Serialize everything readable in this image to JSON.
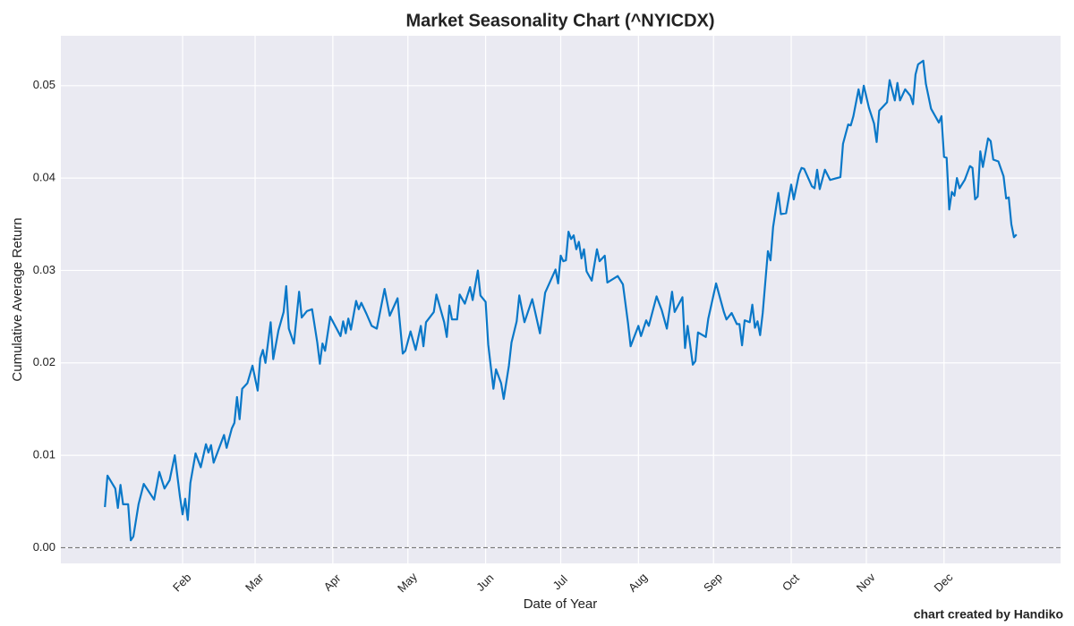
{
  "chart_data": {
    "type": "line",
    "title": "Market Seasonality Chart (^NYICDX)",
    "x_label": "Date of Year",
    "y_label": "Cumulative Average Return",
    "footer": "chart created by Handiko",
    "grid": true,
    "reference_line": 0,
    "xlim": [
      -15,
      371
    ],
    "ylim": [
      -0.0017,
      0.0554
    ],
    "xticks": [
      {
        "value": 32,
        "label": "Feb"
      },
      {
        "value": 60,
        "label": "Mar"
      },
      {
        "value": 90,
        "label": "Apr"
      },
      {
        "value": 119,
        "label": "May"
      },
      {
        "value": 149,
        "label": "Jun"
      },
      {
        "value": 178,
        "label": "Jul"
      },
      {
        "value": 208,
        "label": "Aug"
      },
      {
        "value": 237,
        "label": "Sep"
      },
      {
        "value": 267,
        "label": "Oct"
      },
      {
        "value": 296,
        "label": "Nov"
      },
      {
        "value": 326,
        "label": "Dec"
      }
    ],
    "yticks": [
      {
        "value": 0,
        "label": "0.00"
      },
      0.01,
      0.02,
      0.03,
      0.04,
      0.05
    ],
    "x": [
      2,
      3,
      6,
      7,
      8,
      9,
      11,
      12,
      13,
      15,
      17,
      21,
      23,
      25,
      27,
      29,
      31,
      32,
      33,
      34,
      35,
      37,
      39,
      41,
      42,
      43,
      44,
      48,
      49,
      51,
      52,
      53,
      54,
      55,
      57,
      59,
      61,
      62,
      63,
      64,
      66,
      67,
      69,
      71,
      72,
      73,
      75,
      77,
      78,
      80,
      82,
      84,
      85,
      86,
      87,
      89,
      93,
      94,
      95,
      96,
      97,
      99,
      100,
      101,
      103,
      105,
      107,
      110,
      112,
      115,
      117,
      118,
      120,
      122,
      124,
      125,
      126,
      129,
      130,
      133,
      134,
      135,
      136,
      138,
      139,
      141,
      143,
      144,
      146,
      147,
      149,
      150,
      152,
      153,
      155,
      156,
      158,
      159,
      161,
      162,
      164,
      167,
      170,
      172,
      176,
      177,
      178,
      179,
      180,
      181,
      182,
      183,
      184,
      185,
      186,
      187,
      188,
      190,
      192,
      193,
      195,
      196,
      200,
      202,
      204,
      205,
      208,
      209,
      211,
      212,
      215,
      217,
      219,
      221,
      222,
      225,
      226,
      227,
      229,
      230,
      231,
      234,
      235,
      238,
      241,
      242,
      244,
      246,
      247,
      248,
      249,
      251,
      252,
      253,
      254,
      255,
      256,
      258,
      259,
      260,
      262,
      263,
      265,
      267,
      268,
      270,
      271,
      272,
      275,
      276,
      277,
      278,
      280,
      282,
      286,
      287,
      289,
      290,
      291,
      293,
      294,
      295,
      297,
      299,
      300,
      301,
      304,
      305,
      307,
      308,
      309,
      311,
      313,
      314,
      315,
      316,
      318,
      319,
      321,
      324,
      325,
      326,
      327,
      328,
      329,
      330,
      331,
      332,
      334,
      336,
      337,
      338,
      339,
      340,
      341,
      343,
      344,
      345,
      347,
      349,
      350,
      351,
      352,
      353,
      354
    ],
    "series": [
      {
        "name": "Cumulative Average Return",
        "color": "#0a78c8",
        "values": [
          0.0044,
          0.0078,
          0.0064,
          0.0043,
          0.0068,
          0.0047,
          0.0047,
          0.0008,
          0.0012,
          0.0047,
          0.0069,
          0.0052,
          0.0082,
          0.0064,
          0.0073,
          0.01,
          0.0055,
          0.0036,
          0.0053,
          0.003,
          0.007,
          0.0102,
          0.0087,
          0.0112,
          0.0103,
          0.0111,
          0.0092,
          0.0122,
          0.0108,
          0.0129,
          0.0135,
          0.0163,
          0.0139,
          0.0172,
          0.0178,
          0.0197,
          0.017,
          0.0205,
          0.0214,
          0.02,
          0.0244,
          0.0204,
          0.0235,
          0.0255,
          0.0283,
          0.0237,
          0.0221,
          0.0277,
          0.0249,
          0.0256,
          0.0258,
          0.0222,
          0.0199,
          0.0221,
          0.0213,
          0.025,
          0.0229,
          0.0245,
          0.0232,
          0.0248,
          0.0236,
          0.0267,
          0.0258,
          0.0265,
          0.0253,
          0.024,
          0.0237,
          0.028,
          0.0251,
          0.027,
          0.021,
          0.0213,
          0.0234,
          0.0214,
          0.024,
          0.0218,
          0.0244,
          0.0255,
          0.0274,
          0.0244,
          0.0228,
          0.0262,
          0.0247,
          0.0247,
          0.0274,
          0.0264,
          0.0282,
          0.0268,
          0.03,
          0.0273,
          0.0266,
          0.022,
          0.0172,
          0.0193,
          0.0178,
          0.0161,
          0.0197,
          0.0222,
          0.0245,
          0.0273,
          0.0244,
          0.0269,
          0.0232,
          0.0276,
          0.0301,
          0.0286,
          0.0316,
          0.031,
          0.0311,
          0.0342,
          0.0334,
          0.0338,
          0.0323,
          0.0331,
          0.0313,
          0.0323,
          0.0299,
          0.0289,
          0.0323,
          0.031,
          0.0316,
          0.0287,
          0.0294,
          0.0285,
          0.0243,
          0.0218,
          0.024,
          0.0229,
          0.0246,
          0.024,
          0.0272,
          0.0257,
          0.0237,
          0.0277,
          0.0255,
          0.0271,
          0.0216,
          0.024,
          0.0198,
          0.0202,
          0.0233,
          0.0228,
          0.0248,
          0.0286,
          0.0255,
          0.0247,
          0.0254,
          0.0242,
          0.0242,
          0.0219,
          0.0246,
          0.0244,
          0.0263,
          0.0238,
          0.0245,
          0.023,
          0.0254,
          0.0321,
          0.0311,
          0.0347,
          0.0384,
          0.0361,
          0.0362,
          0.0393,
          0.0377,
          0.0404,
          0.0411,
          0.041,
          0.0391,
          0.0389,
          0.0409,
          0.0388,
          0.0409,
          0.0398,
          0.0401,
          0.0437,
          0.0458,
          0.0457,
          0.0467,
          0.0496,
          0.0481,
          0.05,
          0.0476,
          0.0459,
          0.0439,
          0.0473,
          0.0482,
          0.0506,
          0.0484,
          0.0503,
          0.0484,
          0.0496,
          0.0489,
          0.048,
          0.0512,
          0.0523,
          0.0527,
          0.0502,
          0.0475,
          0.046,
          0.0467,
          0.0423,
          0.0422,
          0.0366,
          0.0385,
          0.0381,
          0.04,
          0.0389,
          0.0398,
          0.0413,
          0.0411,
          0.0377,
          0.038,
          0.0429,
          0.0412,
          0.0443,
          0.044,
          0.042,
          0.0418,
          0.0402,
          0.0378,
          0.0379,
          0.035,
          0.0336,
          0.0339
        ]
      }
    ]
  }
}
